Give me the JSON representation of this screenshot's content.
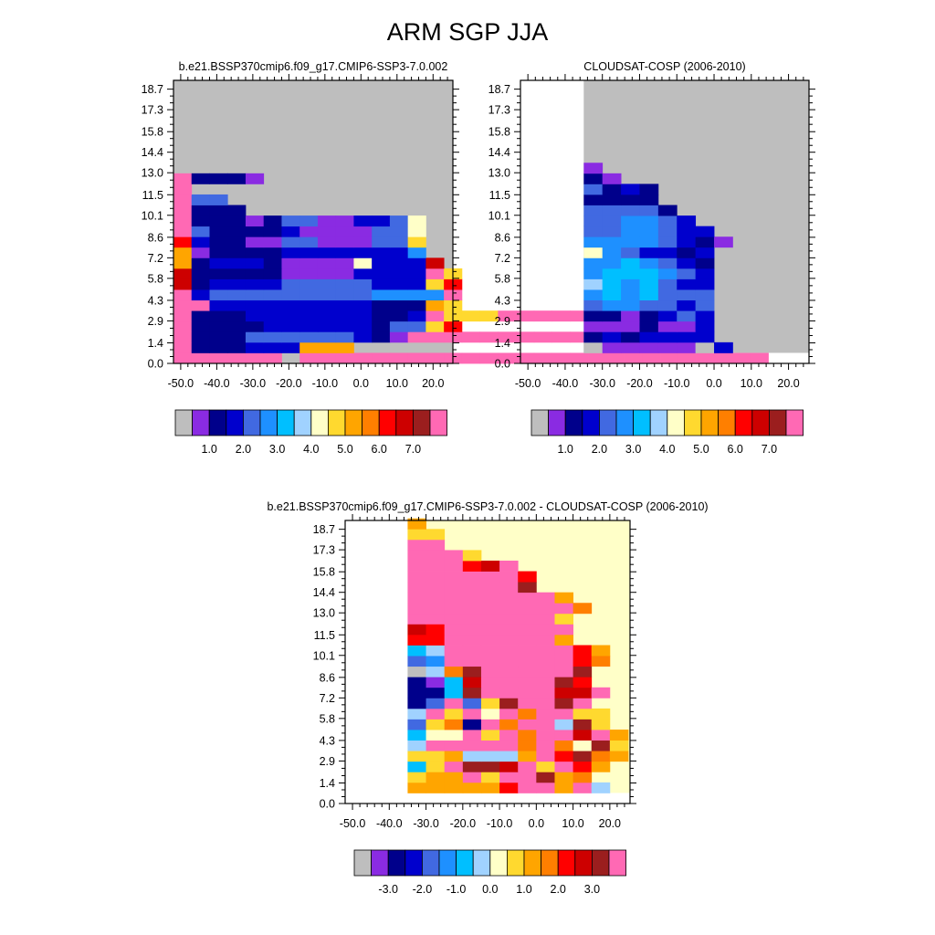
{
  "title": "ARM SGP JJA",
  "chart_data": [
    {
      "id": "model",
      "type": "heatmap",
      "title": "b.e21.BSSP370cmip6.f09_g17.CMIP6-SSP3-7.0.002",
      "x_tick_labels": [
        "-50.0",
        "-40.0",
        "-30.0",
        "-20.0",
        "-10.0",
        "0.0",
        "10.0",
        "20.0"
      ],
      "y_tick_labels": [
        "0.0",
        "1.4",
        "2.9",
        "4.3",
        "5.8",
        "7.2",
        "8.6",
        "10.1",
        "11.5",
        "13.0",
        "14.4",
        "15.8",
        "17.3",
        "18.7"
      ],
      "colorbar_labels": [
        "1.0",
        "2.0",
        "3.0",
        "4.0",
        "5.0",
        "6.0",
        "7.0"
      ],
      "missing_color": "#bebebe",
      "palette": [
        "#bebebe",
        "#8a2be2",
        "#00008b",
        "#0000cd",
        "#4169e1",
        "#1e90ff",
        "#00bfff",
        "#a0d2ff",
        "#ffffc8",
        "#ffd92f",
        "#ffa500",
        "#ff7f00",
        "#ff0000",
        "#cd0000",
        "#9b1e1e",
        "#ff69b4"
      ],
      "grid": {
        "x_start": -52,
        "x_step": 5,
        "y_start": 0,
        "y_step": 0.72,
        "rows_bottom_to_top": [
          "FFFFFF.FFFFFFFFFFFFFFFFFFFFFFFFFF",
          "F222333AAA",
          "F222444444321FFFFFFFFFFFFFFFFF",
          "F22223333332449C",
          "F2223333333223F999FFFFFFFFFFFF",
          "FF333333333222A9",
          "F34444444445555F",
          "D23333444443339C",
          "D2222211113333F9",
          "A2333211118333D",
          "A1222233333335",
          "C3221144111449",
          "F4222231111448",
          "F2221244113348",
          "F222",
          "F44",
          "F",
          "F2221"
        ]
      }
    },
    {
      "id": "obs",
      "type": "heatmap",
      "title": "CLOUDSAT-COSP (2006-2010)",
      "x_tick_labels": [
        "-50.0",
        "-40.0",
        "-30.0",
        "-20.0",
        "-10.0",
        "0.0",
        "10.0",
        "20.0"
      ],
      "y_tick_labels": [
        "0.0",
        "1.4",
        "2.9",
        "4.3",
        "5.8",
        "7.2",
        "8.6",
        "10.1",
        "11.5",
        "13.0",
        "14.4",
        "15.8",
        "17.3",
        "18.7"
      ],
      "colorbar_labels": [
        "1.0",
        "2.0",
        "3.0",
        "4.0",
        "5.0",
        "6.0",
        "7.0"
      ],
      "missing_color": "#bebebe",
      "palette": [
        "#bebebe",
        "#8a2be2",
        "#00008b",
        "#0000cd",
        "#4169e1",
        "#1e90ff",
        "#00bfff",
        "#a0d2ff",
        "#ffffc8",
        "#ffd92f",
        "#ffa500",
        "#ff7f00",
        "#ff0000",
        "#cd0000",
        "#9b1e1e",
        "#ff69b4"
      ],
      "grid": {
        "x_start": -35,
        "x_step": 5,
        "y_start": 0.72,
        "y_step": 0.72,
        "rows_bottom_to_top": [
          "01111103",
          "2323333",
          "1112113",
          "2212343",
          "4554434",
          "5656444",
          "7656433",
          "5666543",
          "5565432",
          "8543323",
          "55554321",
          "4455433",
          "445543",
          "44442",
          "2222",
          "4232",
          "21",
          "1"
        ]
      }
    },
    {
      "id": "diff",
      "type": "heatmap",
      "title": "b.e21.BSSP370cmip6.f09_g17.CMIP6-SSP3-7.0.002 - CLOUDSAT-COSP (2006-2010)",
      "x_tick_labels": [
        "-50.0",
        "-40.0",
        "-30.0",
        "-20.0",
        "-10.0",
        "0.0",
        "10.0",
        "20.0"
      ],
      "y_tick_labels": [
        "0.0",
        "1.4",
        "2.9",
        "4.3",
        "5.8",
        "7.2",
        "8.6",
        "10.1",
        "11.5",
        "13.0",
        "14.4",
        "15.8",
        "17.3",
        "18.7"
      ],
      "colorbar_labels": [
        "-3.0",
        "-2.0",
        "-1.0",
        "0.0",
        "1.0",
        "2.0",
        "3.0"
      ],
      "missing_color": "#ffffc8",
      "palette": [
        "#bebebe",
        "#8a2be2",
        "#00008b",
        "#0000cd",
        "#4169e1",
        "#1e90ff",
        "#00bfff",
        "#a0d2ff",
        "#ffffc8",
        "#ffd92f",
        "#ffa500",
        "#ff7f00",
        "#ff0000",
        "#cd0000",
        "#9b1e1e",
        "#ff69b4"
      ],
      "grid": {
        "x_start": -35,
        "x_step": 5,
        "y_start": 0.72,
        "y_step": 0.72,
        "rows_bottom_to_top": [
          "AAAAACFFAF7",
          "9AAF9FFEAB",
          "69FEEDF9FCA",
          "99A777AFCEBA",
          "7FFFFFBFB8E9",
          "688F9FBFFDFA",
          "49B2FBFF7E9",
          "7F9F8FBFF99",
          "24F49EFFEF",
          "226EFFFFDDF",
          "216DFFFFEC",
          "07BEFFFFFE",
          "45FFFFFFFCB",
          "67FFFFFFFCA",
          "CCFFFFFFA",
          "DCFFFFFFF",
          "FFFFFFFF9",
          "FFFFFFFFFB",
          "FFFFFFFFA",
          "FFFFFFE",
          "FFFFFFC",
          "FFFCDF",
          "FFF9",
          "FF",
          "99",
          "A"
        ]
      }
    }
  ]
}
